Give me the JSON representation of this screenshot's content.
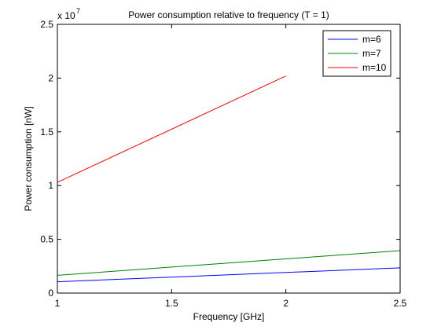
{
  "chart_data": {
    "type": "line",
    "title": "Power consumption relative to frequency (T = 1)",
    "xlabel": "Frequency [GHz]",
    "ylabel": "Power consumption [nW]",
    "y_exponent_label": "x 10",
    "y_exponent": "7",
    "xlim": [
      1,
      2.5
    ],
    "ylim": [
      0,
      25000000
    ],
    "x_ticks": [
      1,
      1.5,
      2,
      2.5
    ],
    "x_tick_labels": [
      "1",
      "1.5",
      "2",
      "2.5"
    ],
    "y_ticks": [
      0,
      5000000,
      10000000,
      15000000,
      20000000,
      25000000
    ],
    "y_tick_labels": [
      "0",
      "0.5",
      "1",
      "1.5",
      "2",
      "2.5"
    ],
    "grid": false,
    "legend_position": "top-right",
    "series": [
      {
        "name": "m=6",
        "color": "#0000ff",
        "x": [
          1,
          2.5
        ],
        "y": [
          1050000,
          2350000
        ]
      },
      {
        "name": "m=7",
        "color": "#008000",
        "x": [
          1,
          2.5
        ],
        "y": [
          1650000,
          3950000
        ]
      },
      {
        "name": "m=10",
        "color": "#ff0000",
        "x": [
          1,
          2
        ],
        "y": [
          10300000,
          20200000
        ]
      }
    ]
  }
}
